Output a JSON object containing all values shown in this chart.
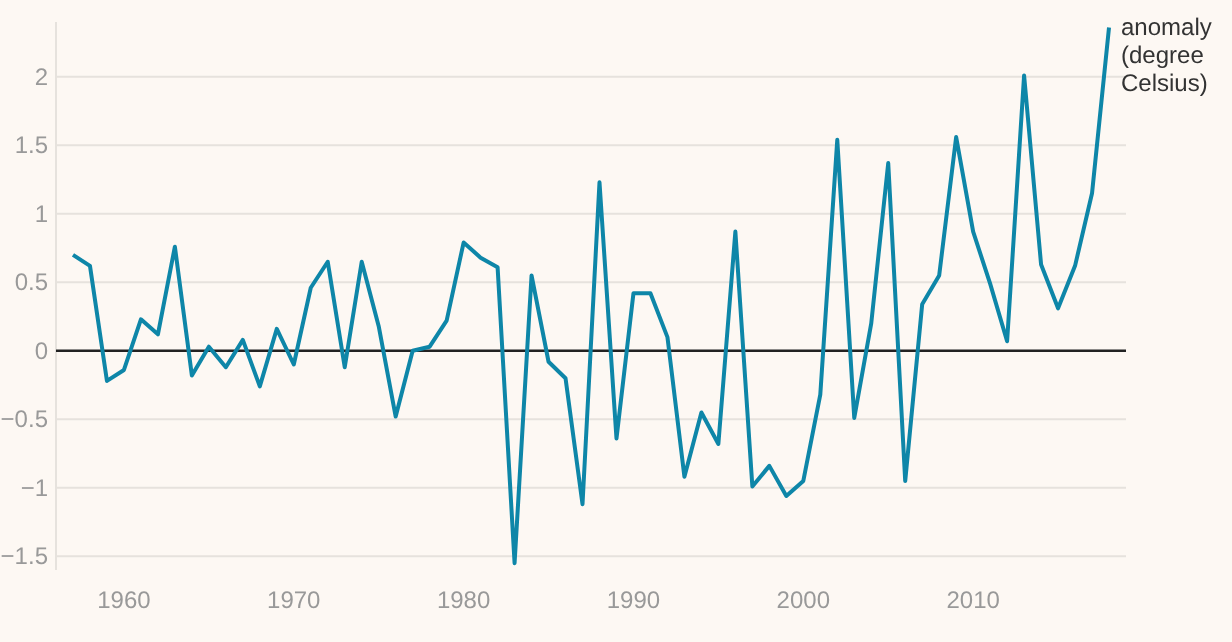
{
  "chart_data": {
    "type": "line",
    "x": [
      1957,
      1958,
      1959,
      1960,
      1961,
      1962,
      1963,
      1964,
      1965,
      1966,
      1967,
      1968,
      1969,
      1970,
      1971,
      1972,
      1973,
      1974,
      1975,
      1976,
      1977,
      1978,
      1979,
      1980,
      1981,
      1982,
      1983,
      1984,
      1985,
      1986,
      1987,
      1988,
      1989,
      1990,
      1991,
      1992,
      1993,
      1994,
      1995,
      1996,
      1997,
      1998,
      1999,
      2000,
      2001,
      2002,
      2003,
      2004,
      2005,
      2006,
      2007,
      2008,
      2009,
      2010,
      2011,
      2012,
      2013,
      2014,
      2015,
      2016,
      2017,
      2018
    ],
    "series": [
      {
        "name": "anomaly (degree Celsius)",
        "color": "#0e86a8",
        "values": [
          0.7,
          0.62,
          -0.22,
          -0.14,
          0.23,
          0.12,
          0.76,
          -0.18,
          0.03,
          -0.12,
          0.08,
          -0.26,
          0.16,
          -0.1,
          0.46,
          0.65,
          -0.12,
          0.65,
          0.18,
          -0.48,
          0.0,
          0.03,
          0.22,
          0.79,
          0.68,
          0.61,
          -1.55,
          0.55,
          -0.08,
          -0.2,
          -1.12,
          1.23,
          -0.64,
          0.42,
          0.42,
          0.1,
          -0.92,
          -0.45,
          -0.68,
          0.87,
          -0.99,
          -0.84,
          -1.06,
          -0.95,
          -0.32,
          1.54,
          -0.49,
          0.2,
          1.37,
          -0.95,
          0.34,
          0.55,
          1.56,
          0.87,
          0.49,
          0.07,
          2.01,
          0.63,
          0.31,
          0.62,
          1.15,
          2.36
        ]
      }
    ],
    "xlim": [
      1956,
      2019
    ],
    "xticks": [
      1960,
      1970,
      1980,
      1990,
      2000,
      2010
    ],
    "ylim": [
      -1.6,
      2.4
    ],
    "yticks": [
      -1.5,
      -1,
      -0.5,
      0,
      0.5,
      1,
      1.5,
      2
    ],
    "grid": "y",
    "marker": "none",
    "line_style": "solid",
    "ref_lines": [
      {
        "axis": "y",
        "value": 0,
        "color": "#222222"
      }
    ]
  }
}
